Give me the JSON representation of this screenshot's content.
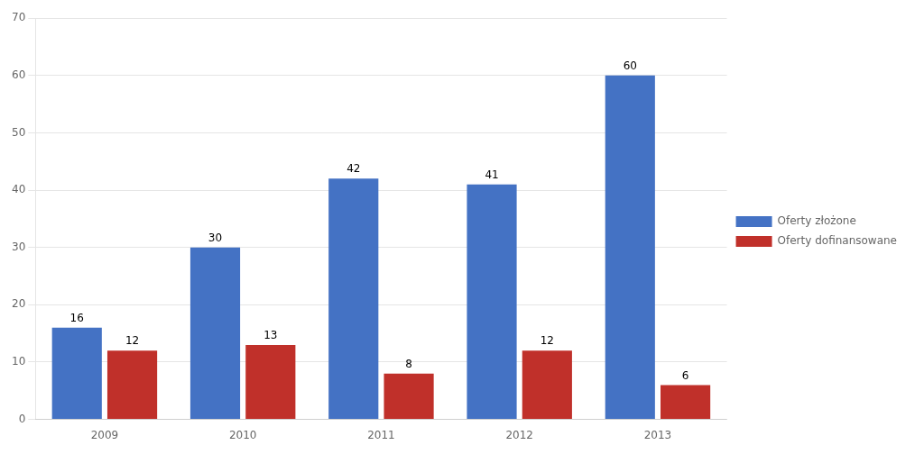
{
  "chart_data": {
    "type": "bar",
    "categories": [
      "2009",
      "2010",
      "2011",
      "2012",
      "2013"
    ],
    "series": [
      {
        "name": "Oferty złożone",
        "color": "#4472c4",
        "values": [
          16,
          30,
          42,
          41,
          60
        ]
      },
      {
        "name": "Oferty dofinansowane",
        "color": "#c0302a",
        "values": [
          12,
          13,
          8,
          12,
          6
        ]
      }
    ],
    "ylim": [
      0,
      70
    ],
    "yticks": [
      0,
      10,
      20,
      30,
      40,
      50,
      60,
      70
    ],
    "grid": true,
    "legend": "right",
    "data_labels": true
  }
}
